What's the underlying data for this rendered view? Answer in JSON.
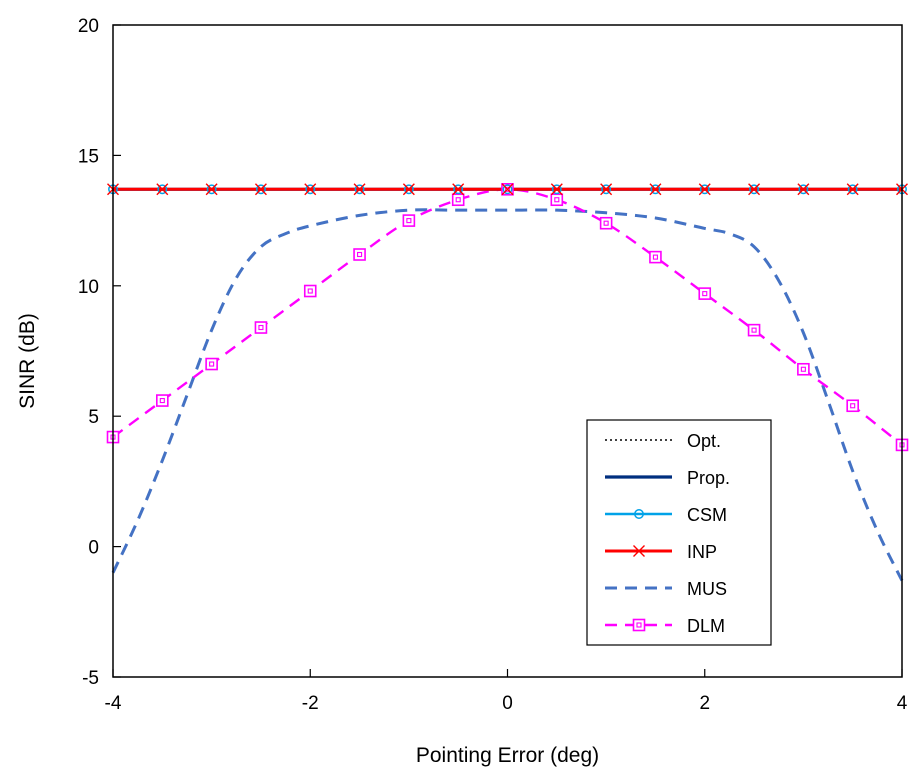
{
  "chart_data": {
    "type": "line",
    "title": "",
    "xlabel": "Pointing Error (deg)",
    "ylabel": "SINR (dB)",
    "xlim": [
      -4,
      4
    ],
    "ylim": [
      -5,
      20
    ],
    "xticks": [
      -4,
      -2,
      0,
      2,
      4
    ],
    "yticks": [
      -5,
      0,
      5,
      10,
      15,
      20
    ],
    "xtick_labels": [
      "-4",
      "-2",
      "0",
      "2",
      "4"
    ],
    "ytick_labels": [
      "-5",
      "0",
      "5",
      "10",
      "15",
      "20"
    ],
    "grid": false,
    "legend_position": "bottom-right",
    "legend": [
      "Opt.",
      "Prop.",
      "CSM",
      "INP",
      "MUS",
      "DLM"
    ],
    "series": [
      {
        "name": "Opt.",
        "color": "#000000",
        "line_style": "dotted",
        "marker": "none",
        "x": [
          -4,
          4
        ],
        "y": [
          13.7,
          13.7
        ]
      },
      {
        "name": "Prop.",
        "color": "#002f7f",
        "line_style": "solid",
        "marker": "none",
        "x": [
          -4,
          4
        ],
        "y": [
          13.7,
          13.7
        ]
      },
      {
        "name": "CSM",
        "color": "#00a2e8",
        "line_style": "solid",
        "marker": "circle",
        "x": [
          -4,
          -3.5,
          -3,
          -2.5,
          -2,
          -1.5,
          -1,
          -0.5,
          0,
          0.5,
          1,
          1.5,
          2,
          2.5,
          3,
          3.5,
          4
        ],
        "y": [
          13.7,
          13.7,
          13.7,
          13.7,
          13.7,
          13.7,
          13.7,
          13.7,
          13.7,
          13.7,
          13.7,
          13.7,
          13.7,
          13.7,
          13.7,
          13.7,
          13.7
        ]
      },
      {
        "name": "INP",
        "color": "#ff0000",
        "line_style": "solid",
        "marker": "x",
        "x": [
          -4,
          -3.5,
          -3,
          -2.5,
          -2,
          -1.5,
          -1,
          -0.5,
          0,
          0.5,
          1,
          1.5,
          2,
          2.5,
          3,
          3.5,
          4
        ],
        "y": [
          13.7,
          13.7,
          13.7,
          13.7,
          13.7,
          13.7,
          13.7,
          13.7,
          13.7,
          13.7,
          13.7,
          13.7,
          13.7,
          13.7,
          13.7,
          13.7,
          13.7
        ]
      },
      {
        "name": "MUS",
        "color": "#4472c4",
        "line_style": "dashed",
        "marker": "none",
        "x": [
          -4,
          -3.75,
          -3.5,
          -3.25,
          -3,
          -2.75,
          -2.5,
          -2.25,
          -2,
          -1.5,
          -1,
          -0.5,
          0,
          0.5,
          1,
          1.5,
          2,
          2.25,
          2.5,
          2.75,
          3,
          3.25,
          3.5,
          3.75,
          4
        ],
        "y": [
          -1.0,
          1.0,
          3.3,
          5.8,
          8.3,
          10.3,
          11.5,
          12.0,
          12.3,
          12.7,
          12.9,
          12.9,
          12.9,
          12.9,
          12.8,
          12.6,
          12.2,
          12.0,
          11.5,
          10.2,
          8.2,
          5.6,
          2.9,
          0.6,
          -1.3
        ]
      },
      {
        "name": "DLM",
        "color": "#ff00ff",
        "line_style": "dashed",
        "marker": "square",
        "x": [
          -4,
          -3.5,
          -3,
          -2.5,
          -2,
          -1.5,
          -1,
          -0.5,
          0,
          0.5,
          1,
          1.5,
          2,
          2.5,
          3,
          3.5,
          4
        ],
        "y": [
          4.2,
          5.6,
          7.0,
          8.4,
          9.8,
          11.2,
          12.5,
          13.3,
          13.7,
          13.3,
          12.4,
          11.1,
          9.7,
          8.3,
          6.8,
          5.4,
          3.9
        ]
      }
    ]
  }
}
